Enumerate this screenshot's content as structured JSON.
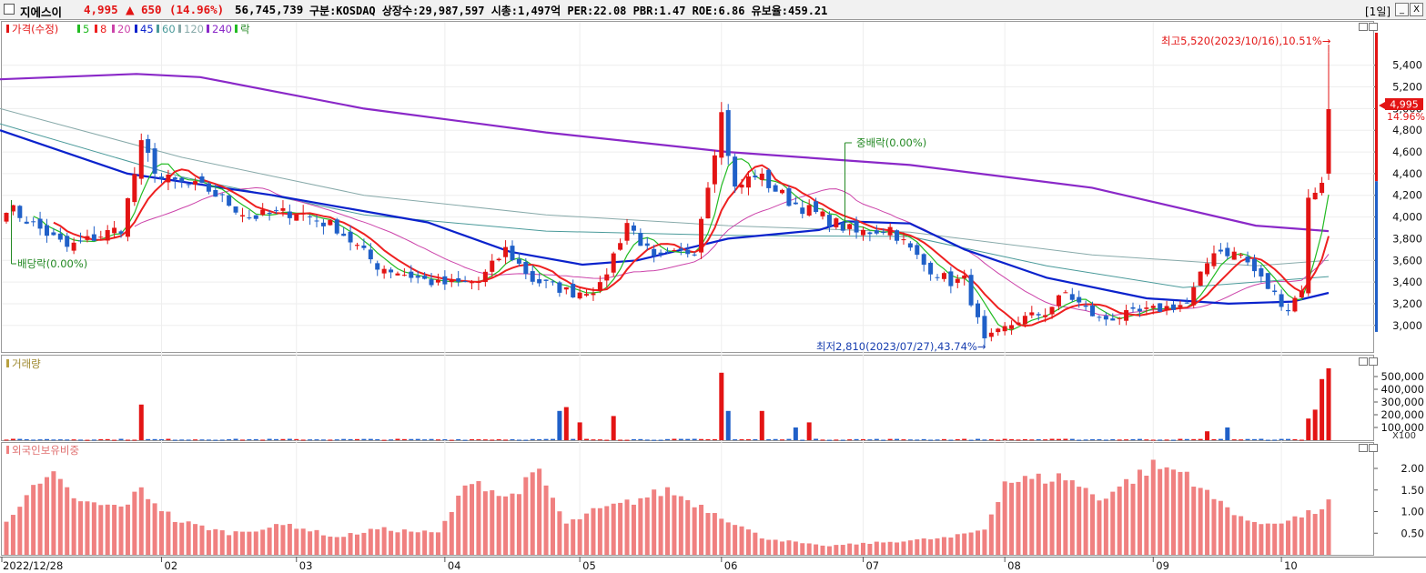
{
  "header": {
    "name": "지에스이",
    "price": "4,995",
    "change_arrow": "▲",
    "change": "650",
    "change_pct": "(14.96%)",
    "volume": "56,745,739",
    "info": "구분:KOSDAQ 상장수:29,987,597 시총:1,497억 PER:22.08 PBR:1.47 ROE:6.86 유보율:459.21",
    "period": "[1일]",
    "btn_min": "_",
    "btn_max": "□",
    "btn_close": "X"
  },
  "colors": {
    "up": "#e31414",
    "down": "#2060c8",
    "ma5": "#22bb22",
    "ma8": "#ee2020",
    "ma20": "#cc44aa",
    "ma45": "#0a22cc",
    "ma60": "#4a9a9a",
    "ma120": "#88aaaa",
    "ma240": "#8a28c8",
    "foreign": "#f08080"
  },
  "chart_data": [
    {
      "type": "candlestick",
      "title": "",
      "legend": {
        "price_label": "가격(수정)",
        "items": [
          "5",
          "8",
          "20",
          "45",
          "60",
          "120",
          "240"
        ],
        "tail_label": "락"
      },
      "y_ticks": [
        "5,400",
        "5,200",
        "5,000",
        "4,800",
        "4,600",
        "4,400",
        "4,200",
        "4,000",
        "3,800",
        "3,600",
        "3,400",
        "3,200",
        "3,000"
      ],
      "ylim": [
        2780,
        5750
      ],
      "current_price_label": "4,995",
      "current_pct_label": "14.96%",
      "annotations": {
        "high": "최고5,520(2023/10/16),10.51%→",
        "low": "최저2,810(2023/07/27),43.74%→",
        "dividend": "배당락(0.00%)",
        "bonus": "중배락(0.00%)"
      },
      "x_labels": [
        "2022/12/28",
        "02",
        "03",
        "04",
        "05",
        "06",
        "07",
        "08",
        "09",
        "10"
      ],
      "anchors": [
        {
          "date": "2022/12/28",
          "price": 4100
        },
        {
          "date": "2023/01/10",
          "price": 3720
        },
        {
          "date": "2023/01/20",
          "price": 3900
        },
        {
          "date": "2023/01/27",
          "price": 4650
        },
        {
          "date": "2023/02/01",
          "price": 4350
        },
        {
          "date": "2023/02/10",
          "price": 4250
        },
        {
          "date": "2023/02/20",
          "price": 4000
        },
        {
          "date": "2023/03/02",
          "price": 4050
        },
        {
          "date": "2023/03/10",
          "price": 3900
        },
        {
          "date": "2023/03/20",
          "price": 3550
        },
        {
          "date": "2023/03/31",
          "price": 3380
        },
        {
          "date": "2023/04/10",
          "price": 3400
        },
        {
          "date": "2023/04/14",
          "price": 3700
        },
        {
          "date": "2023/04/20",
          "price": 3420
        },
        {
          "date": "2023/04/28",
          "price": 3300
        },
        {
          "date": "2023/05/08",
          "price": 3350
        },
        {
          "date": "2023/05/12",
          "price": 3950
        },
        {
          "date": "2023/05/18",
          "price": 3600
        },
        {
          "date": "2023/05/26",
          "price": 3700
        },
        {
          "date": "2023/06/01",
          "price": 4950
        },
        {
          "date": "2023/06/05",
          "price": 4250
        },
        {
          "date": "2023/06/09",
          "price": 4400
        },
        {
          "date": "2023/06/16",
          "price": 4150
        },
        {
          "date": "2023/06/23",
          "price": 4000
        },
        {
          "date": "2023/06/30",
          "price": 3850
        },
        {
          "date": "2023/07/07",
          "price": 3900
        },
        {
          "date": "2023/07/14",
          "price": 3560
        },
        {
          "date": "2023/07/20",
          "price": 3400
        },
        {
          "date": "2023/07/24",
          "price": 3420
        },
        {
          "date": "2023/07/27",
          "price": 2850
        },
        {
          "date": "2023/08/03",
          "price": 3050
        },
        {
          "date": "2023/08/09",
          "price": 3120
        },
        {
          "date": "2023/08/14",
          "price": 3300
        },
        {
          "date": "2023/08/22",
          "price": 3050
        },
        {
          "date": "2023/08/31",
          "price": 3130
        },
        {
          "date": "2023/09/08",
          "price": 3200
        },
        {
          "date": "2023/09/14",
          "price": 3700
        },
        {
          "date": "2023/09/20",
          "price": 3650
        },
        {
          "date": "2023/09/26",
          "price": 3350
        },
        {
          "date": "2023/10/05",
          "price": 3150
        },
        {
          "date": "2023/10/10",
          "price": 3350
        },
        {
          "date": "2023/10/11",
          "price": 4150
        },
        {
          "date": "2023/10/13",
          "price": 4350
        },
        {
          "date": "2023/10/16",
          "price": 4995
        }
      ],
      "ma240_points": [
        [
          0,
          5270
        ],
        [
          150,
          5320
        ],
        [
          220,
          5290
        ],
        [
          400,
          5000
        ],
        [
          600,
          4780
        ],
        [
          800,
          4600
        ],
        [
          1000,
          4480
        ],
        [
          1200,
          4270
        ],
        [
          1380,
          3920
        ],
        [
          1460,
          3870
        ]
      ],
      "ma120_points": [
        [
          0,
          5000
        ],
        [
          200,
          4550
        ],
        [
          400,
          4200
        ],
        [
          600,
          4020
        ],
        [
          800,
          3920
        ],
        [
          1000,
          3860
        ],
        [
          1200,
          3650
        ],
        [
          1380,
          3550
        ],
        [
          1460,
          3600
        ]
      ],
      "ma60_points": [
        [
          0,
          4860
        ],
        [
          200,
          4370
        ],
        [
          400,
          4020
        ],
        [
          600,
          3870
        ],
        [
          800,
          3830
        ],
        [
          1000,
          3820
        ],
        [
          1150,
          3550
        ],
        [
          1300,
          3350
        ],
        [
          1460,
          3450
        ]
      ],
      "ma45_points": [
        [
          0,
          4800
        ],
        [
          140,
          4400
        ],
        [
          300,
          4200
        ],
        [
          470,
          3950
        ],
        [
          560,
          3680
        ],
        [
          640,
          3560
        ],
        [
          700,
          3600
        ],
        [
          800,
          3800
        ],
        [
          900,
          3880
        ],
        [
          930,
          3960
        ],
        [
          1000,
          3940
        ],
        [
          1060,
          3700
        ],
        [
          1150,
          3440
        ],
        [
          1260,
          3250
        ],
        [
          1350,
          3200
        ],
        [
          1420,
          3220
        ],
        [
          1460,
          3300
        ]
      ]
    },
    {
      "type": "bar",
      "title": "",
      "legend": "거래량",
      "y_ticks": [
        "500,000",
        "400,000",
        "300,000",
        "200,000",
        "100,000"
      ],
      "unit": "X100",
      "ylim": [
        0,
        600000
      ],
      "spikes": [
        {
          "date": "2023/01/27",
          "value": 280000
        },
        {
          "date": "2023/04/26",
          "value": 230000
        },
        {
          "date": "2023/04/27",
          "value": 260000
        },
        {
          "date": "2023/05/02",
          "value": 140000
        },
        {
          "date": "2023/05/10",
          "value": 190000
        },
        {
          "date": "2023/06/01",
          "value": 530000
        },
        {
          "date": "2023/06/02",
          "value": 230000
        },
        {
          "date": "2023/06/12",
          "value": 230000
        },
        {
          "date": "2023/06/19",
          "value": 100000
        },
        {
          "date": "2023/06/21",
          "value": 140000
        },
        {
          "date": "2023/09/13",
          "value": 70000
        },
        {
          "date": "2023/09/18",
          "value": 100000
        },
        {
          "date": "2023/10/11",
          "value": 170000
        },
        {
          "date": "2023/10/12",
          "value": 240000
        },
        {
          "date": "2023/10/13",
          "value": 480000
        },
        {
          "date": "2023/10/16",
          "value": 565000
        }
      ]
    },
    {
      "type": "bar",
      "title": "",
      "legend": "외국인보유비중",
      "y_ticks": [
        "2.00",
        "1.50",
        "1.00",
        "0.50"
      ],
      "ylim": [
        0,
        2.4
      ],
      "x_labels": [
        "2022/12/28",
        "02",
        "03",
        "04",
        "05",
        "06",
        "07",
        "08",
        "09",
        "10"
      ],
      "foreign_anchors": [
        {
          "date": "2022/12/28",
          "value": 0.8
        },
        {
          "date": "2023/01/02",
          "value": 1.4
        },
        {
          "date": "2023/01/06",
          "value": 1.8
        },
        {
          "date": "2023/01/12",
          "value": 1.2
        },
        {
          "date": "2023/01/20",
          "value": 1.1
        },
        {
          "date": "2023/01/27",
          "value": 1.5
        },
        {
          "date": "2023/02/03",
          "value": 0.8
        },
        {
          "date": "2023/02/15",
          "value": 0.5
        },
        {
          "date": "2023/02/28",
          "value": 0.7
        },
        {
          "date": "2023/03/10",
          "value": 0.4
        },
        {
          "date": "2023/03/20",
          "value": 0.6
        },
        {
          "date": "2023/03/31",
          "value": 0.5
        },
        {
          "date": "2023/04/07",
          "value": 1.8
        },
        {
          "date": "2023/04/14",
          "value": 1.3
        },
        {
          "date": "2023/04/21",
          "value": 1.9
        },
        {
          "date": "2023/04/27",
          "value": 0.7
        },
        {
          "date": "2023/05/04",
          "value": 1.0
        },
        {
          "date": "2023/05/12",
          "value": 1.2
        },
        {
          "date": "2023/05/22",
          "value": 1.5
        },
        {
          "date": "2023/06/01",
          "value": 0.9
        },
        {
          "date": "2023/06/12",
          "value": 0.4
        },
        {
          "date": "2023/06/23",
          "value": 0.2
        },
        {
          "date": "2023/07/07",
          "value": 0.3
        },
        {
          "date": "2023/07/20",
          "value": 0.4
        },
        {
          "date": "2023/07/27",
          "value": 0.6
        },
        {
          "date": "2023/08/01",
          "value": 1.7
        },
        {
          "date": "2023/08/14",
          "value": 1.8
        },
        {
          "date": "2023/08/22",
          "value": 1.3
        },
        {
          "date": "2023/09/01",
          "value": 2.05
        },
        {
          "date": "2023/09/08",
          "value": 1.9
        },
        {
          "date": "2023/09/13",
          "value": 1.4
        },
        {
          "date": "2023/09/22",
          "value": 0.7
        },
        {
          "date": "2023/10/05",
          "value": 0.8
        },
        {
          "date": "2023/10/12",
          "value": 1.0
        },
        {
          "date": "2023/10/16",
          "value": 1.2
        }
      ]
    }
  ]
}
